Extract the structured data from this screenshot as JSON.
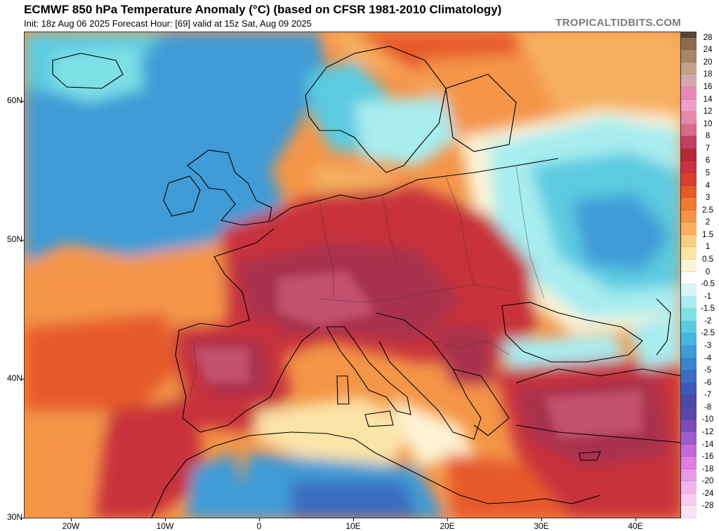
{
  "header": {
    "title": "ECMWF 850 hPa Temperature Anomaly (°C) (based on CFSR 1981-2010 Climatology)",
    "subtitle": "Init: 18z Aug 06 2025   Forecast Hour: [69]   valid at 15z Sat, Aug 09 2025",
    "brand": "TROPICALTIDBITS.COM"
  },
  "axes": {
    "lat_labels": [
      "60N",
      "50N",
      "40N",
      "30N"
    ],
    "lon_labels": [
      "20W",
      "10W",
      "0",
      "10E",
      "20E",
      "30E",
      "40E"
    ]
  },
  "legend": {
    "labels": [
      "28",
      "24",
      "20",
      "18",
      "16",
      "14",
      "12",
      "10",
      "8",
      "7",
      "6",
      "5",
      "4",
      "3",
      "2.5",
      "2",
      "1.5",
      "1",
      "0.5",
      "0",
      "-0.5",
      "-1",
      "-1.5",
      "-2",
      "-2.5",
      "-3",
      "-4",
      "-5",
      "-6",
      "-7",
      "-8",
      "-10",
      "-12",
      "-14",
      "-16",
      "-18",
      "-20",
      "-24",
      "-28"
    ],
    "colors": [
      "#8a6b4e",
      "#a88564",
      "#c3a289",
      "#d6a7ae",
      "#e58ab4",
      "#eda0c3",
      "#e58aa8",
      "#d86a8a",
      "#c04060",
      "#b52a3a",
      "#c8323a",
      "#d8402e",
      "#e65a2a",
      "#f07a34",
      "#f49548",
      "#f6b060",
      "#f8cc82",
      "#fbe4a8",
      "#fdf3d4",
      "#ffffff",
      "#d8f5f7",
      "#a8edf0",
      "#7fe0e6",
      "#5ccbe0",
      "#49b6dc",
      "#3f9bd6",
      "#3b83cc",
      "#3b6cc0",
      "#4058b4",
      "#4a4aa8",
      "#5a48a8",
      "#7a4cb8",
      "#a05cc8",
      "#c46ad6",
      "#dd7ee0",
      "#e89ae4",
      "#f0b4ea",
      "#f6cdf0",
      "#fbe3f6"
    ]
  },
  "colors": {
    "very_hot": "#a8304e",
    "hot": "#c8323a",
    "warm": "#e65a2a",
    "mild": "#f49548",
    "neutral": "#fdf3d4",
    "cool": "#a8edf0",
    "cold": "#5ccbe0",
    "colder": "#3f9bd6",
    "coldest": "#3b6cc0"
  }
}
